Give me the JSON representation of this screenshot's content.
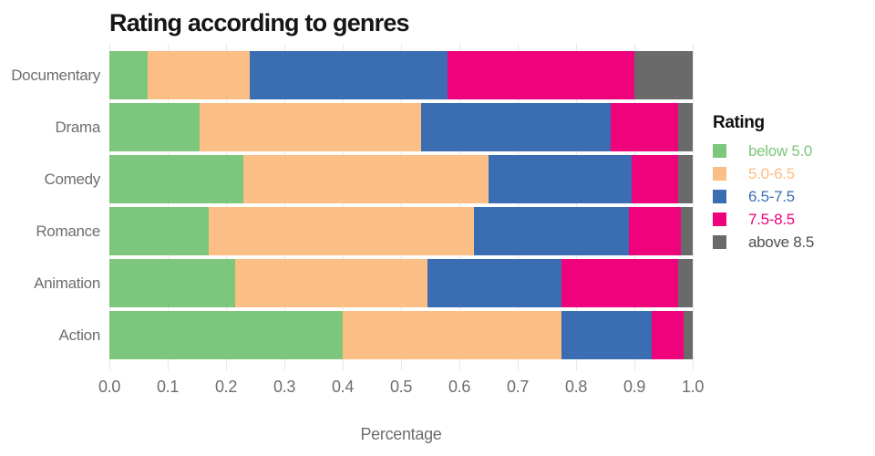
{
  "header": {
    "title": "Rating according to genres"
  },
  "axes": {
    "x_ticks": [
      "0.0",
      "0.1",
      "0.2",
      "0.3",
      "0.4",
      "0.5",
      "0.6",
      "0.7",
      "0.8",
      "0.9",
      "1.0"
    ],
    "x_title": "Percentage"
  },
  "legend": {
    "title": "Rating",
    "items": [
      {
        "label": "below 5.0",
        "swatch_color": "#7CC77B",
        "text_color": "#7CC77B"
      },
      {
        "label": "5.0-6.5",
        "swatch_color": "#FBBE85",
        "text_color": "#FBBE85"
      },
      {
        "label": "6.5-7.5",
        "swatch_color": "#3A6DB2",
        "text_color": "#3A6DB2"
      },
      {
        "label": "7.5-8.5",
        "swatch_color": "#EE037C",
        "text_color": "#EE037C"
      },
      {
        "label": "above 8.5",
        "swatch_color": "#6A6A6A",
        "text_color": "#4F4F4F"
      }
    ]
  },
  "colors": {
    "grid": "#F0E5E9",
    "axis_text": "#6E6E6E",
    "category_text": "#6E6E6E"
  },
  "chart_data": {
    "type": "bar",
    "orientation": "horizontal",
    "stacked": true,
    "title": "Rating according to genres",
    "xlabel": "Percentage",
    "ylabel": "",
    "xlim": [
      0,
      1
    ],
    "grid": true,
    "legend_position": "right",
    "legend_title": "Rating",
    "categories": [
      "Documentary",
      "Drama",
      "Comedy",
      "Romance",
      "Animation",
      "Action"
    ],
    "series": [
      {
        "name": "below 5.0",
        "color": "#7CC77B",
        "values": [
          0.065,
          0.155,
          0.23,
          0.17,
          0.215,
          0.4
        ]
      },
      {
        "name": "5.0-6.5",
        "color": "#FBBE85",
        "values": [
          0.175,
          0.38,
          0.42,
          0.455,
          0.33,
          0.375
        ]
      },
      {
        "name": "6.5-7.5",
        "color": "#3A6DB2",
        "values": [
          0.34,
          0.325,
          0.245,
          0.265,
          0.23,
          0.155
        ]
      },
      {
        "name": "7.5-8.5",
        "color": "#EE037C",
        "values": [
          0.32,
          0.115,
          0.08,
          0.09,
          0.2,
          0.055
        ]
      },
      {
        "name": "above 8.5",
        "color": "#6A6A6A",
        "values": [
          0.1,
          0.025,
          0.025,
          0.02,
          0.025,
          0.015
        ]
      }
    ]
  }
}
